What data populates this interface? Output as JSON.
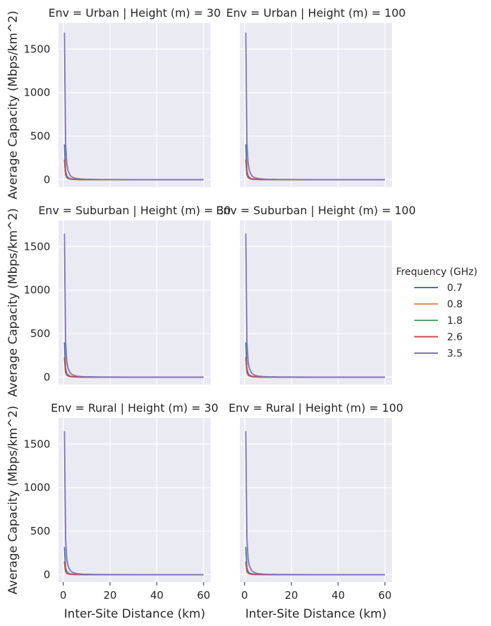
{
  "chart_data": {
    "type": "line",
    "facet_grid": {
      "rows": 3,
      "cols": 2
    },
    "x": [
      0.5,
      1,
      1.5,
      2,
      3,
      4,
      5,
      6,
      8,
      10,
      15,
      20,
      30,
      40,
      50,
      60
    ],
    "xlim": [
      -2,
      63
    ],
    "ylim": [
      -85,
      1800
    ],
    "xticks": [
      0,
      20,
      40,
      60
    ],
    "yticks": [
      0,
      500,
      1000,
      1500
    ],
    "xlabel": "Inter-Site Distance (km)",
    "ylabel": "Average Capacity (Mbps/km^2)",
    "legend": {
      "title": "Frequency (GHz)",
      "placement": "right",
      "entries": [
        {
          "label": "0.7",
          "color": "#4c72b0"
        },
        {
          "label": "0.8",
          "color": "#dd8452"
        },
        {
          "label": "1.8",
          "color": "#55a868"
        },
        {
          "label": "2.6",
          "color": "#c44e52"
        },
        {
          "label": "3.5",
          "color": "#8172b3"
        }
      ]
    },
    "panels": [
      {
        "title": "Env = Urban | Height (m) = 30",
        "series": [
          {
            "name": "0.7",
            "values": [
              405,
              101,
              45,
              25,
              11,
              6,
              4,
              3,
              1.6,
              1,
              0.45,
              0.25,
              0.11,
              0.06,
              0.04,
              0.03
            ]
          },
          {
            "name": "0.8",
            "values": [
              232,
              58,
              26,
              14.5,
              6.4,
              3.6,
              2.3,
              1.6,
              0.9,
              0.6,
              0.26,
              0.15,
              0.06,
              0.04,
              0.02,
              0.02
            ]
          },
          {
            "name": "1.8",
            "values": [
              232,
              58,
              26,
              14.5,
              6.4,
              3.6,
              2.3,
              1.6,
              0.9,
              0.6,
              0.26,
              0.15,
              0.06,
              0.04,
              0.02,
              0.02
            ]
          },
          {
            "name": "2.6",
            "values": [
              232,
              58,
              26,
              14.5,
              6.4,
              3.6,
              2.3,
              1.6,
              0.9,
              0.6,
              0.26,
              0.15,
              0.06,
              0.04,
              0.02,
              0.02
            ]
          },
          {
            "name": "3.5",
            "values": [
              1690,
              422,
              188,
              106,
              47,
              26,
              17,
              12,
              6.6,
              4.2,
              1.9,
              1.1,
              0.47,
              0.26,
              0.17,
              0.12
            ]
          }
        ]
      },
      {
        "title": "Env = Urban | Height (m) = 100",
        "series": [
          {
            "name": "0.7",
            "values": [
              405,
              101,
              45,
              25,
              11,
              6,
              4,
              3,
              1.6,
              1,
              0.45,
              0.25,
              0.11,
              0.06,
              0.04,
              0.03
            ]
          },
          {
            "name": "0.8",
            "values": [
              232,
              58,
              26,
              14.5,
              6.4,
              3.6,
              2.3,
              1.6,
              0.9,
              0.6,
              0.26,
              0.15,
              0.06,
              0.04,
              0.02,
              0.02
            ]
          },
          {
            "name": "1.8",
            "values": [
              232,
              58,
              26,
              14.5,
              6.4,
              3.6,
              2.3,
              1.6,
              0.9,
              0.6,
              0.26,
              0.15,
              0.06,
              0.04,
              0.02,
              0.02
            ]
          },
          {
            "name": "2.6",
            "values": [
              232,
              58,
              26,
              14.5,
              6.4,
              3.6,
              2.3,
              1.6,
              0.9,
              0.6,
              0.26,
              0.15,
              0.06,
              0.04,
              0.02,
              0.02
            ]
          },
          {
            "name": "3.5",
            "values": [
              1690,
              422,
              188,
              106,
              47,
              26,
              17,
              12,
              6.6,
              4.2,
              1.9,
              1.1,
              0.47,
              0.26,
              0.17,
              0.12
            ]
          }
        ]
      },
      {
        "title": "Env = Suburban | Height (m) = 30",
        "series": [
          {
            "name": "0.7",
            "values": [
              400,
              100,
              44,
              25,
              11,
              6,
              4,
              2.8,
              1.6,
              1,
              0.44,
              0.25,
              0.11,
              0.06,
              0.04,
              0.03
            ]
          },
          {
            "name": "0.8",
            "values": [
              230,
              57,
              25.5,
              14.4,
              6.4,
              3.6,
              2.3,
              1.6,
              0.9,
              0.57,
              0.26,
              0.14,
              0.06,
              0.04,
              0.02,
              0.02
            ]
          },
          {
            "name": "1.8",
            "values": [
              230,
              57,
              25.5,
              14.4,
              6.4,
              3.6,
              2.3,
              1.6,
              0.9,
              0.57,
              0.26,
              0.14,
              0.06,
              0.04,
              0.02,
              0.02
            ]
          },
          {
            "name": "2.6",
            "values": [
              230,
              57,
              25.5,
              14.4,
              6.4,
              3.6,
              2.3,
              1.6,
              0.9,
              0.57,
              0.26,
              0.14,
              0.06,
              0.04,
              0.02,
              0.02
            ]
          },
          {
            "name": "3.5",
            "values": [
              1650,
              412,
              183,
              103,
              46,
              26,
              16.5,
              11.5,
              6.4,
              4.1,
              1.8,
              1.0,
              0.46,
              0.26,
              0.17,
              0.11
            ]
          }
        ]
      },
      {
        "title": "Env = Suburban | Height (m) = 100",
        "series": [
          {
            "name": "0.7",
            "values": [
              400,
              100,
              44,
              25,
              11,
              6,
              4,
              2.8,
              1.6,
              1,
              0.44,
              0.25,
              0.11,
              0.06,
              0.04,
              0.03
            ]
          },
          {
            "name": "0.8",
            "values": [
              230,
              57,
              25.5,
              14.4,
              6.4,
              3.6,
              2.3,
              1.6,
              0.9,
              0.57,
              0.26,
              0.14,
              0.06,
              0.04,
              0.02,
              0.02
            ]
          },
          {
            "name": "1.8",
            "values": [
              230,
              57,
              25.5,
              14.4,
              6.4,
              3.6,
              2.3,
              1.6,
              0.9,
              0.57,
              0.26,
              0.14,
              0.06,
              0.04,
              0.02,
              0.02
            ]
          },
          {
            "name": "2.6",
            "values": [
              230,
              57,
              25.5,
              14.4,
              6.4,
              3.6,
              2.3,
              1.6,
              0.9,
              0.57,
              0.26,
              0.14,
              0.06,
              0.04,
              0.02,
              0.02
            ]
          },
          {
            "name": "3.5",
            "values": [
              1650,
              412,
              183,
              103,
              46,
              26,
              16.5,
              11.5,
              6.4,
              4.1,
              1.8,
              1.0,
              0.46,
              0.26,
              0.17,
              0.11
            ]
          }
        ]
      },
      {
        "title": "Env = Rural | Height (m) = 30",
        "series": [
          {
            "name": "0.7",
            "values": [
              320,
              80,
              36,
              20,
              9,
              5,
              3.2,
              2.2,
              1.25,
              0.8,
              0.36,
              0.2,
              0.09,
              0.05,
              0.03,
              0.02
            ]
          },
          {
            "name": "0.8",
            "values": [
              150,
              37.5,
              16.7,
              9.4,
              4.2,
              2.3,
              1.5,
              1.04,
              0.59,
              0.38,
              0.17,
              0.09,
              0.04,
              0.02,
              0.02,
              0.01
            ]
          },
          {
            "name": "1.8",
            "values": [
              150,
              37.5,
              16.7,
              9.4,
              4.2,
              2.3,
              1.5,
              1.04,
              0.59,
              0.38,
              0.17,
              0.09,
              0.04,
              0.02,
              0.02,
              0.01
            ]
          },
          {
            "name": "2.6",
            "values": [
              150,
              37.5,
              16.7,
              9.4,
              4.2,
              2.3,
              1.5,
              1.04,
              0.59,
              0.38,
              0.17,
              0.09,
              0.04,
              0.02,
              0.02,
              0.01
            ]
          },
          {
            "name": "3.5",
            "values": [
              1650,
              412,
              183,
              103,
              46,
              26,
              16.5,
              11.5,
              6.4,
              4.1,
              1.8,
              1.0,
              0.46,
              0.26,
              0.17,
              0.11
            ]
          }
        ]
      },
      {
        "title": "Env = Rural | Height (m) = 100",
        "series": [
          {
            "name": "0.7",
            "values": [
              320,
              80,
              36,
              20,
              9,
              5,
              3.2,
              2.2,
              1.25,
              0.8,
              0.36,
              0.2,
              0.09,
              0.05,
              0.03,
              0.02
            ]
          },
          {
            "name": "0.8",
            "values": [
              150,
              37.5,
              16.7,
              9.4,
              4.2,
              2.3,
              1.5,
              1.04,
              0.59,
              0.38,
              0.17,
              0.09,
              0.04,
              0.02,
              0.02,
              0.01
            ]
          },
          {
            "name": "1.8",
            "values": [
              150,
              37.5,
              16.7,
              9.4,
              4.2,
              2.3,
              1.5,
              1.04,
              0.59,
              0.38,
              0.17,
              0.09,
              0.04,
              0.02,
              0.02,
              0.01
            ]
          },
          {
            "name": "2.6",
            "values": [
              150,
              37.5,
              16.7,
              9.4,
              4.2,
              2.3,
              1.5,
              1.04,
              0.59,
              0.38,
              0.17,
              0.09,
              0.04,
              0.02,
              0.02,
              0.01
            ]
          },
          {
            "name": "3.5",
            "values": [
              1650,
              412,
              183,
              103,
              46,
              26,
              16.5,
              11.5,
              6.4,
              4.1,
              1.8,
              1.0,
              0.46,
              0.26,
              0.17,
              0.11
            ]
          }
        ]
      }
    ]
  }
}
